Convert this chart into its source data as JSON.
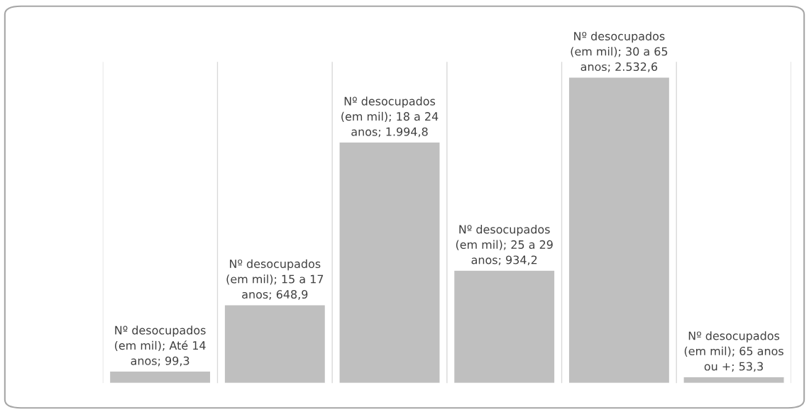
{
  "chart_data": {
    "type": "bar",
    "categories": [
      null,
      null,
      null,
      null,
      null,
      null
    ],
    "series": [
      {
        "color": "#bfbfbf",
        "values": [
          99.3,
          648.9,
          1994.8,
          934.2,
          2532.6,
          53.3
        ],
        "value_labels": [
          "Nº desocupados (em mil); Até 14 anos; 99,3",
          "Nº desocupados (em mil); 15 a 17 anos; 648,9",
          "Nº desocupados (em mil); 18 a 24 anos; 1.994,8",
          "Nº desocupados (em mil); 25 a 29 anos; 934,2",
          "Nº desocupados (em mil); 30 a 65 anos; 2.532,6",
          "Nº desocupados (em mil); 65 anos ou +; 53,3"
        ]
      }
    ],
    "grid": "x"
  }
}
